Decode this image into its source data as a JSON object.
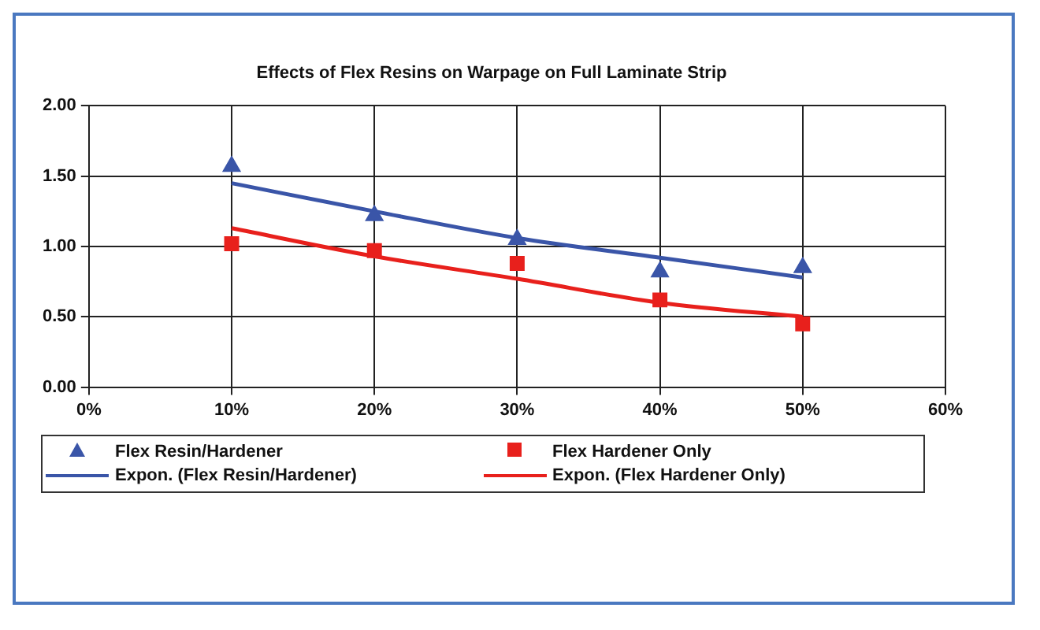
{
  "chart_data": {
    "type": "scatter",
    "title": "Effects of Flex Resins on Warpage on Full Laminate Strip",
    "x": [
      10,
      20,
      30,
      40,
      50
    ],
    "series": [
      {
        "name": "Flex Resin/Hardener",
        "color": "#3a55a8",
        "marker": "triangle",
        "values": [
          1.57,
          1.22,
          1.05,
          0.82,
          0.85
        ]
      },
      {
        "name": "Flex Hardener Only",
        "color": "#e8201c",
        "marker": "square",
        "values": [
          1.02,
          0.97,
          0.88,
          0.62,
          0.45
        ]
      },
      {
        "name": "Expon. (Flex Resin/Hardener)",
        "type": "line",
        "color": "#3a55a8",
        "marker": "none",
        "line_style": "solid",
        "x": [
          10,
          20,
          30,
          40,
          50
        ],
        "values": [
          1.45,
          1.25,
          1.06,
          0.92,
          0.78
        ]
      },
      {
        "name": "Expon. (Flex Hardener Only)",
        "type": "line",
        "color": "#e8201c",
        "marker": "none",
        "line_style": "solid",
        "x": [
          10,
          20,
          30,
          40,
          50
        ],
        "values": [
          1.13,
          0.93,
          0.77,
          0.6,
          0.5
        ]
      }
    ],
    "xlim": [
      0,
      60
    ],
    "xticks": [
      {
        "value": 0,
        "label": "0%"
      },
      {
        "value": 10,
        "label": "10%"
      },
      {
        "value": 20,
        "label": "20%"
      },
      {
        "value": 30,
        "label": "30%"
      },
      {
        "value": 40,
        "label": "40%"
      },
      {
        "value": 50,
        "label": "50%"
      },
      {
        "value": 60,
        "label": "60%"
      }
    ],
    "ylim": [
      0,
      2
    ],
    "yticks": [
      {
        "value": 0,
        "label": "0.00"
      },
      {
        "value": 0.5,
        "label": "0.50"
      },
      {
        "value": 1,
        "label": "1.00"
      },
      {
        "value": 1.5,
        "label": "1.50"
      },
      {
        "value": 2,
        "label": "2.00"
      }
    ],
    "grid": true,
    "legend": "bottom"
  }
}
